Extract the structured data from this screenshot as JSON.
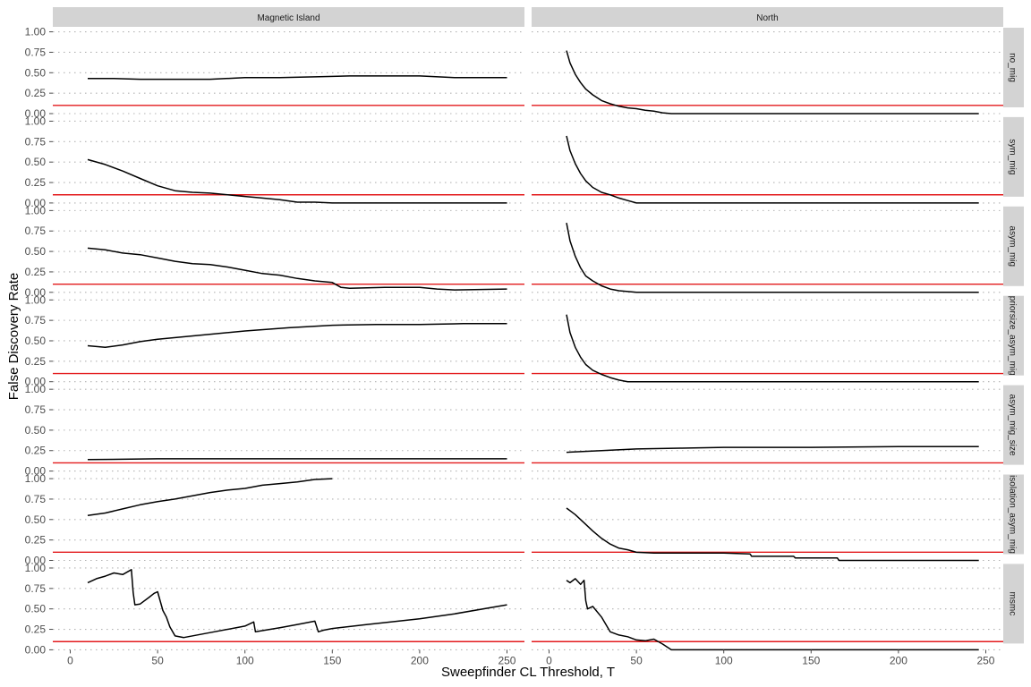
{
  "chart_data": {
    "type": "line",
    "xlabel": "Sweepfinder CL Threshold, T",
    "ylabel": "False Discovery Rate",
    "xlim": [
      -10,
      260
    ],
    "ylim": [
      0,
      1.05
    ],
    "x_ticks": [
      0,
      50,
      100,
      150,
      200,
      250
    ],
    "y_ticks": [
      0.0,
      0.25,
      0.5,
      0.75,
      1.0
    ],
    "y_tick_labels": [
      "0.00",
      "0.25",
      "0.50",
      "0.75",
      "1.00"
    ],
    "grid": "dotted horizontal",
    "reference_line": {
      "y": 0.1,
      "color": "#e31a1c"
    },
    "line_color": "#000000",
    "strip_fill": "#d3d3d3",
    "columns": [
      "Magnetic Island",
      "North"
    ],
    "rows": [
      "no_mig",
      "sym_mig",
      "asym_mig",
      "priorsize_asym_mig",
      "asym_mig_size",
      "isolation_asym_mig",
      "msmc"
    ],
    "panels": [
      {
        "row": 0,
        "col": 0,
        "x": [
          10,
          25,
          40,
          60,
          80,
          100,
          120,
          140,
          160,
          180,
          200,
          220,
          250
        ],
        "y": [
          0.43,
          0.43,
          0.42,
          0.42,
          0.42,
          0.44,
          0.44,
          0.45,
          0.46,
          0.46,
          0.46,
          0.44,
          0.44
        ]
      },
      {
        "row": 0,
        "col": 1,
        "x": [
          10,
          12,
          15,
          18,
          21,
          25,
          30,
          35,
          40,
          45,
          50,
          55,
          60,
          65,
          70,
          80,
          100,
          150,
          200,
          246
        ],
        "y": [
          0.77,
          0.62,
          0.48,
          0.38,
          0.3,
          0.23,
          0.16,
          0.12,
          0.09,
          0.07,
          0.06,
          0.04,
          0.03,
          0.01,
          0.0,
          0.0,
          0.0,
          0.0,
          0.0,
          0.0
        ]
      },
      {
        "row": 1,
        "col": 0,
        "x": [
          10,
          20,
          30,
          40,
          50,
          60,
          70,
          80,
          90,
          100,
          110,
          120,
          130,
          140,
          150,
          200,
          250
        ],
        "y": [
          0.53,
          0.47,
          0.39,
          0.3,
          0.21,
          0.15,
          0.13,
          0.12,
          0.1,
          0.08,
          0.06,
          0.04,
          0.01,
          0.01,
          0.0,
          0.0,
          0.0
        ]
      },
      {
        "row": 1,
        "col": 1,
        "x": [
          10,
          12,
          15,
          18,
          21,
          25,
          30,
          35,
          40,
          45,
          50,
          60,
          100,
          150,
          200,
          246
        ],
        "y": [
          0.82,
          0.64,
          0.48,
          0.36,
          0.27,
          0.19,
          0.13,
          0.1,
          0.06,
          0.03,
          0.0,
          0.0,
          0.0,
          0.0,
          0.0,
          0.0
        ]
      },
      {
        "row": 2,
        "col": 0,
        "x": [
          10,
          20,
          30,
          40,
          50,
          60,
          70,
          80,
          90,
          100,
          110,
          120,
          130,
          140,
          150,
          155,
          160,
          180,
          200,
          210,
          220,
          250
        ],
        "y": [
          0.54,
          0.52,
          0.48,
          0.46,
          0.42,
          0.38,
          0.35,
          0.34,
          0.31,
          0.27,
          0.23,
          0.21,
          0.17,
          0.14,
          0.12,
          0.06,
          0.05,
          0.06,
          0.06,
          0.04,
          0.03,
          0.04
        ]
      },
      {
        "row": 2,
        "col": 1,
        "x": [
          10,
          12,
          15,
          18,
          21,
          25,
          30,
          35,
          40,
          45,
          50,
          100,
          150,
          200,
          246
        ],
        "y": [
          0.85,
          0.63,
          0.44,
          0.3,
          0.2,
          0.14,
          0.08,
          0.04,
          0.02,
          0.01,
          0.0,
          0.0,
          0.0,
          0.0,
          0.0
        ]
      },
      {
        "row": 3,
        "col": 0,
        "x": [
          10,
          15,
          20,
          30,
          40,
          50,
          75,
          100,
          125,
          150,
          175,
          200,
          225,
          250
        ],
        "y": [
          0.44,
          0.43,
          0.42,
          0.45,
          0.49,
          0.52,
          0.57,
          0.62,
          0.66,
          0.69,
          0.7,
          0.7,
          0.71,
          0.71
        ]
      },
      {
        "row": 3,
        "col": 1,
        "x": [
          10,
          12,
          15,
          18,
          21,
          25,
          30,
          35,
          40,
          45,
          50,
          100,
          150,
          200,
          246
        ],
        "y": [
          0.82,
          0.6,
          0.42,
          0.3,
          0.21,
          0.14,
          0.09,
          0.05,
          0.02,
          0.0,
          0.0,
          0.0,
          0.0,
          0.0,
          0.0
        ]
      },
      {
        "row": 4,
        "col": 0,
        "x": [
          10,
          50,
          100,
          150,
          200,
          250
        ],
        "y": [
          0.14,
          0.15,
          0.15,
          0.15,
          0.15,
          0.15
        ]
      },
      {
        "row": 4,
        "col": 1,
        "x": [
          10,
          30,
          50,
          75,
          100,
          150,
          200,
          246
        ],
        "y": [
          0.23,
          0.25,
          0.27,
          0.28,
          0.29,
          0.29,
          0.3,
          0.3
        ]
      },
      {
        "row": 5,
        "col": 0,
        "x": [
          10,
          20,
          30,
          40,
          50,
          60,
          70,
          80,
          90,
          100,
          110,
          120,
          130,
          140,
          150
        ],
        "y": [
          0.55,
          0.58,
          0.63,
          0.68,
          0.72,
          0.75,
          0.79,
          0.83,
          0.86,
          0.88,
          0.92,
          0.94,
          0.96,
          0.99,
          1.0
        ]
      },
      {
        "row": 5,
        "col": 1,
        "x": [
          10,
          15,
          20,
          25,
          30,
          35,
          40,
          45,
          50,
          60,
          80,
          100,
          115,
          116,
          140,
          141,
          165,
          166,
          246
        ],
        "y": [
          0.64,
          0.56,
          0.46,
          0.36,
          0.27,
          0.2,
          0.15,
          0.13,
          0.1,
          0.09,
          0.09,
          0.09,
          0.08,
          0.05,
          0.05,
          0.03,
          0.03,
          0.0,
          0.0
        ]
      },
      {
        "row": 6,
        "col": 0,
        "x": [
          10,
          15,
          20,
          25,
          30,
          35,
          36,
          37,
          40,
          45,
          48,
          50,
          53,
          55,
          57,
          60,
          65,
          80,
          100,
          105,
          106,
          120,
          130,
          140,
          142,
          145,
          150,
          170,
          200,
          220,
          250
        ],
        "y": [
          0.82,
          0.87,
          0.9,
          0.94,
          0.92,
          0.98,
          0.7,
          0.55,
          0.56,
          0.64,
          0.69,
          0.71,
          0.48,
          0.4,
          0.28,
          0.17,
          0.15,
          0.21,
          0.29,
          0.34,
          0.22,
          0.27,
          0.31,
          0.35,
          0.22,
          0.24,
          0.26,
          0.31,
          0.38,
          0.44,
          0.55
        ]
      },
      {
        "row": 6,
        "col": 1,
        "x": [
          10,
          12,
          15,
          18,
          20,
          21,
          22,
          25,
          30,
          35,
          40,
          45,
          50,
          55,
          60,
          65,
          70,
          80,
          100,
          150,
          200,
          246
        ],
        "y": [
          0.85,
          0.82,
          0.87,
          0.8,
          0.85,
          0.6,
          0.5,
          0.53,
          0.4,
          0.22,
          0.18,
          0.16,
          0.12,
          0.11,
          0.13,
          0.07,
          0.0,
          0.0,
          0.0,
          0.0,
          0.0,
          0.0
        ]
      }
    ]
  }
}
